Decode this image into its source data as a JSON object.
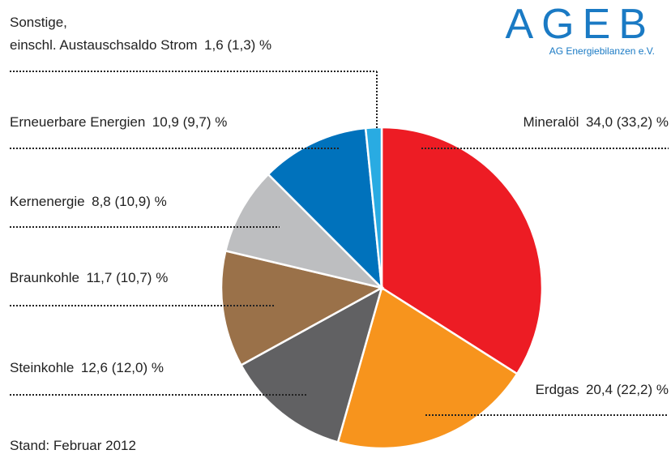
{
  "chart_data": {
    "type": "pie",
    "categories": [
      "Mineralöl",
      "Erdgas",
      "Steinkohle",
      "Braunkohle",
      "Kernenergie",
      "Erneuerbare Energien",
      "Sonstige,\neinschl. Austauschsaldo Strom"
    ],
    "values": [
      34.0,
      20.4,
      12.6,
      11.7,
      8.8,
      10.9,
      1.6
    ],
    "value_labels": [
      "34,0 (33,2) %",
      "20,4 (22,2) %",
      "12,6 (12,0) %",
      "11,7 (10,7) %",
      "8,8 (10,9) %",
      "10,9 (9,7) %",
      "1,6 (1,3) %"
    ],
    "colors": [
      "#ed1c24",
      "#f7941d",
      "#616163",
      "#9a7149",
      "#bdbec0",
      "#0072bc",
      "#29abe2"
    ],
    "logo": {
      "title": "AGEB",
      "subtitle": "AG Energiebilanzen e.V."
    },
    "footer": "Stand: Februar 2012"
  }
}
